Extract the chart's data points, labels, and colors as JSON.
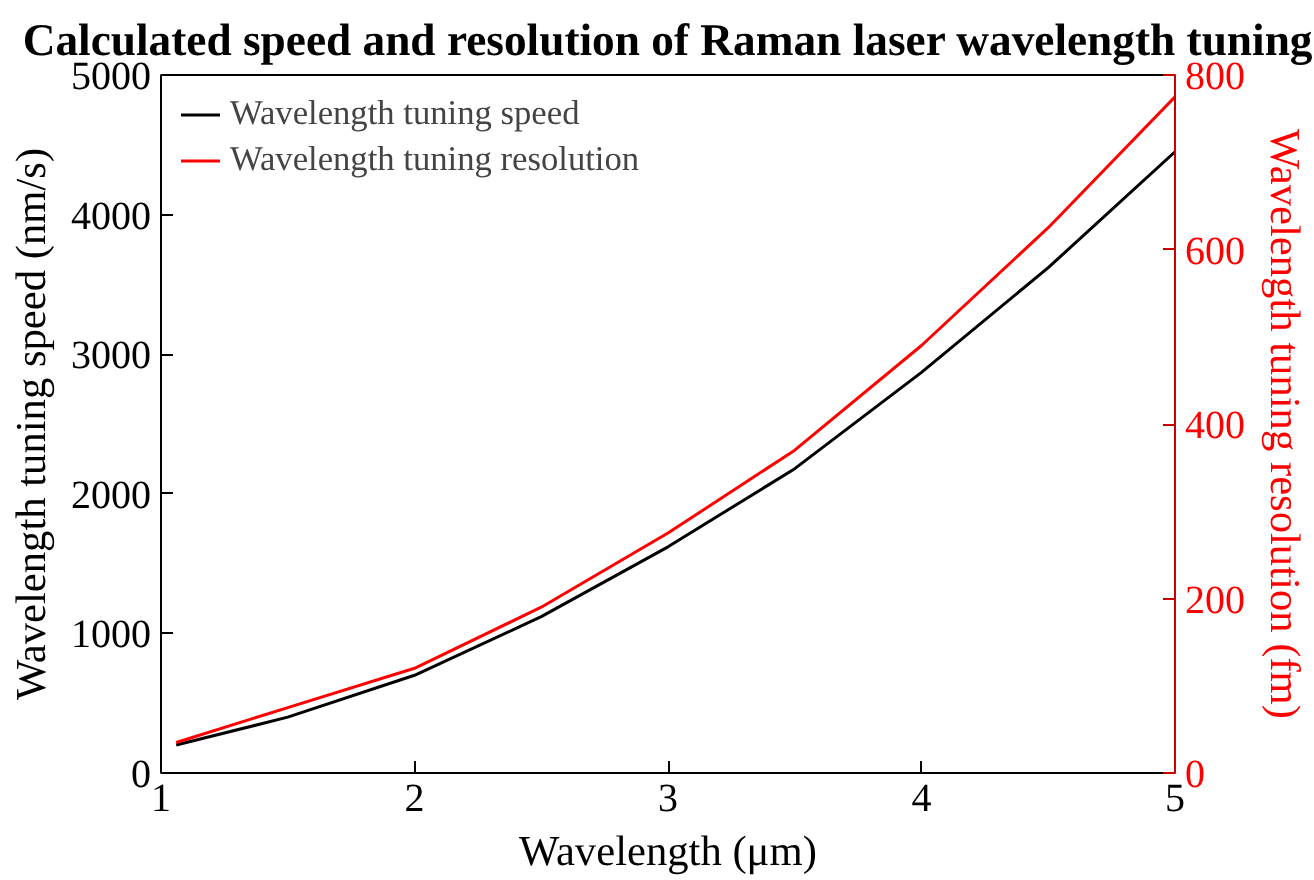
{
  "chart_data": {
    "type": "line",
    "title": "Calculated speed and resolution of Raman laser wavelength tuning",
    "xlabel": "Wavelength (μm)",
    "ylabel": "Wavelength tuning speed (nm/s)",
    "y2label": "Wavelength tuning resolution (fm)",
    "x": [
      1.06,
      1.5,
      2,
      2.5,
      3,
      3.5,
      4,
      4.5,
      5
    ],
    "series": [
      {
        "name": "Wavelength tuning speed",
        "color": "#000000",
        "values": [
          200,
          400,
          700,
          1120,
          1620,
          2180,
          2870,
          3620,
          4450
        ]
      },
      {
        "name": "Wavelength tuning resolution",
        "color": "#ff0000",
        "axis": "y2",
        "values": [
          35,
          75,
          120,
          190,
          275,
          370,
          490,
          625,
          775
        ]
      }
    ],
    "xlim": [
      1,
      5
    ],
    "xticks": [
      1,
      2,
      3,
      4,
      5
    ],
    "ylim": [
      0,
      5000
    ],
    "yticks": [
      0,
      1000,
      2000,
      3000,
      4000,
      5000
    ],
    "y2lim": [
      0,
      800
    ],
    "y2ticks": [
      0,
      200,
      400,
      600,
      800
    ],
    "grid": false,
    "legend": "top left",
    "line_style": "solid"
  }
}
